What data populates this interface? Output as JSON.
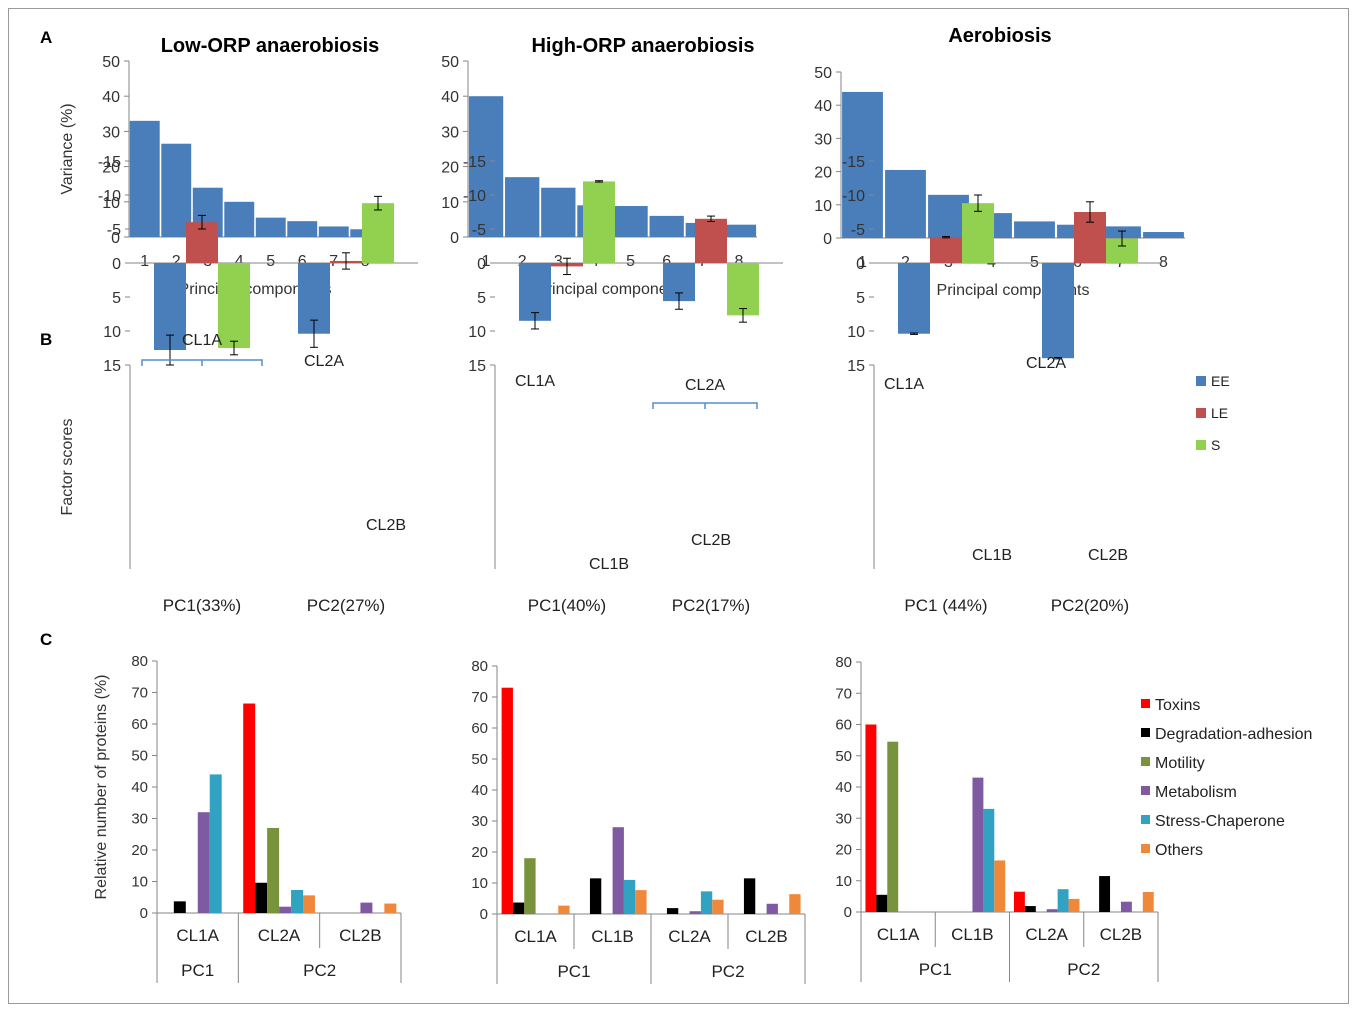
{
  "panel_labels": [
    "A",
    "B",
    "C"
  ],
  "colors": {
    "pca_bar": "#4a7ebb",
    "EE": "#4a7ebb",
    "LE": "#c0504d",
    "S": "#92d050",
    "Toxins": "#ff0000",
    "Degradation-adhesion": "#000000",
    "Motility": "#77933c",
    "Metabolism": "#7f5aa2",
    "Stress-Chaperone": "#31a2c2",
    "Others": "#f0883c",
    "bracket": "#558ed5"
  },
  "chart_data": [
    {
      "panel": "A",
      "type": "bar",
      "title": "Low-ORP anaerobiosis",
      "xlabel": "Principal components",
      "ylabel": "Variance (%)",
      "categories": [
        "1",
        "2",
        "3",
        "4",
        "5",
        "6",
        "7",
        "8"
      ],
      "values": [
        33,
        26.5,
        14,
        10,
        5.5,
        4.5,
        3,
        2.2
      ],
      "ylim": [
        0,
        50
      ],
      "yticks": [
        "0",
        "10",
        "20",
        "30",
        "40",
        "50"
      ]
    },
    {
      "panel": "A",
      "type": "bar",
      "title": "High-ORP anaerobiosis",
      "xlabel": "Principal components",
      "ylabel": "",
      "categories": [
        "1",
        "2",
        "3",
        "4",
        "5",
        "6",
        "7",
        "8"
      ],
      "values": [
        40,
        17,
        14,
        9,
        8.8,
        6,
        4,
        3.5
      ],
      "ylim": [
        0,
        50
      ],
      "yticks": [
        "0",
        "10",
        "20",
        "30",
        "40",
        "50"
      ]
    },
    {
      "panel": "A",
      "type": "bar",
      "title": "Aerobiosis",
      "xlabel": "Principal components",
      "ylabel": "",
      "categories": [
        "1",
        "2",
        "3",
        "4",
        "5",
        "6",
        "7",
        "8"
      ],
      "values": [
        44,
        20.5,
        13,
        7.5,
        5,
        4,
        3.5,
        1.8
      ],
      "ylim": [
        0,
        50
      ],
      "yticks": [
        "0",
        "10",
        "20",
        "30",
        "40",
        "50"
      ]
    },
    {
      "panel": "B",
      "type": "bar",
      "ylabel": "Factor scores",
      "categories": [
        "PC1(33%)",
        "PC2(27%)"
      ],
      "ylim": [
        -15,
        15
      ],
      "yticks": [
        "-15",
        "-10",
        "-5",
        "0",
        "5",
        "10",
        "15"
      ],
      "series": [
        {
          "name": "EE",
          "values": [
            12.8,
            10.4
          ],
          "errors": [
            2.2,
            2.0
          ]
        },
        {
          "name": "LE",
          "values": [
            -6.0,
            -0.3
          ],
          "errors": [
            1.0,
            1.2
          ]
        },
        {
          "name": "S",
          "values": [
            12.5,
            -8.8
          ],
          "errors": [
            1.0,
            1.0
          ]
        }
      ],
      "annotations": [
        "CL1A",
        "CL2A",
        "CL2B"
      ]
    },
    {
      "panel": "B",
      "type": "bar",
      "ylabel": "",
      "categories": [
        "PC1(40%)",
        "PC2(17%)"
      ],
      "ylim": [
        -15,
        15
      ],
      "yticks": [
        "-15",
        "-10",
        "-5",
        "0",
        "5",
        "10",
        "15"
      ],
      "series": [
        {
          "name": "EE",
          "values": [
            8.5,
            5.6
          ],
          "errors": [
            1.2,
            1.2
          ]
        },
        {
          "name": "LE",
          "values": [
            0.5,
            -6.5
          ],
          "errors": [
            1.2,
            0.4
          ]
        },
        {
          "name": "S",
          "values": [
            -12.0,
            7.7
          ],
          "errors": [
            0.1,
            1.0
          ]
        }
      ],
      "annotations": [
        "CL1A",
        "CL2A",
        "CL1B",
        "CL2B"
      ]
    },
    {
      "panel": "B",
      "type": "bar",
      "ylabel": "",
      "categories": [
        "PC1 (44%)",
        "PC2(20%)"
      ],
      "ylim": [
        -15,
        15
      ],
      "yticks": [
        "-15",
        "-10",
        "-5",
        "0",
        "5",
        "10",
        "15"
      ],
      "series": [
        {
          "name": "EE",
          "values": [
            10.4,
            14.0
          ],
          "errors": [
            0.1,
            0.1
          ]
        },
        {
          "name": "LE",
          "values": [
            -3.8,
            -7.5
          ],
          "errors": [
            0.1,
            1.5
          ]
        },
        {
          "name": "S",
          "values": [
            -8.8,
            -3.6
          ],
          "errors": [
            1.2,
            1.1
          ]
        }
      ],
      "annotations": [
        "CL1A",
        "CL2A",
        "CL1B",
        "CL2B"
      ],
      "legend": [
        "EE",
        "LE",
        "S"
      ],
      "legend_position": "right"
    },
    {
      "panel": "C",
      "type": "bar",
      "ylabel": "Relative number of proteins (%)",
      "categories": [
        "CL1A",
        "CL2A",
        "CL2B"
      ],
      "groups": [
        [
          "PC1",
          1
        ],
        [
          "PC2",
          2
        ]
      ],
      "ylim": [
        0,
        80
      ],
      "yticks": [
        "0",
        "10",
        "20",
        "30",
        "40",
        "50",
        "60",
        "70",
        "80"
      ],
      "series": [
        {
          "name": "Toxins",
          "values": [
            0,
            66.5,
            0
          ]
        },
        {
          "name": "Degradation-adhesion",
          "values": [
            3.7,
            9.6,
            0
          ]
        },
        {
          "name": "Motility",
          "values": [
            0,
            27,
            0
          ]
        },
        {
          "name": "Metabolism",
          "values": [
            32,
            2,
            3.3
          ]
        },
        {
          "name": "Stress-Chaperone",
          "values": [
            44,
            7.3,
            0
          ]
        },
        {
          "name": "Others",
          "values": [
            0,
            5.6,
            3
          ]
        }
      ]
    },
    {
      "panel": "C",
      "type": "bar",
      "ylabel": "",
      "categories": [
        "CL1A",
        "CL1B",
        "CL2A",
        "CL2B"
      ],
      "groups": [
        [
          "PC1",
          2
        ],
        [
          "PC2",
          2
        ]
      ],
      "ylim": [
        0,
        80
      ],
      "yticks": [
        "0",
        "10",
        "20",
        "30",
        "40",
        "50",
        "60",
        "70",
        "80"
      ],
      "series": [
        {
          "name": "Toxins",
          "values": [
            73,
            0,
            0,
            0
          ]
        },
        {
          "name": "Degradation-adhesion",
          "values": [
            3.7,
            11.5,
            1.9,
            11.5
          ]
        },
        {
          "name": "Motility",
          "values": [
            18,
            0,
            0,
            0
          ]
        },
        {
          "name": "Metabolism",
          "values": [
            0,
            28,
            0.9,
            3.3
          ]
        },
        {
          "name": "Stress-Chaperone",
          "values": [
            0,
            11,
            7.3,
            0
          ]
        },
        {
          "name": "Others",
          "values": [
            2.7,
            7.7,
            4.6,
            6.4
          ]
        }
      ]
    },
    {
      "panel": "C",
      "type": "bar",
      "ylabel": "",
      "categories": [
        "CL1A",
        "CL1B",
        "CL2A",
        "CL2B"
      ],
      "groups": [
        [
          "PC1",
          2
        ],
        [
          "PC2",
          2
        ]
      ],
      "ylim": [
        0,
        80
      ],
      "yticks": [
        "0",
        "10",
        "20",
        "30",
        "40",
        "50",
        "60",
        "70",
        "80"
      ],
      "series": [
        {
          "name": "Toxins",
          "values": [
            60,
            0,
            6.5,
            0
          ]
        },
        {
          "name": "Degradation-adhesion",
          "values": [
            5.5,
            0,
            1.9,
            11.5
          ]
        },
        {
          "name": "Motility",
          "values": [
            54.5,
            0,
            0,
            0
          ]
        },
        {
          "name": "Metabolism",
          "values": [
            0,
            43,
            0.9,
            3.3
          ]
        },
        {
          "name": "Stress-Chaperone",
          "values": [
            0,
            33,
            7.3,
            0
          ]
        },
        {
          "name": "Others",
          "values": [
            0,
            16.5,
            4.2,
            6.4
          ]
        }
      ],
      "legend": [
        "Toxins",
        "Degradation-adhesion",
        "Motility",
        "Metabolism",
        "Stress-Chaperone",
        "Others"
      ],
      "legend_position": "right"
    }
  ]
}
